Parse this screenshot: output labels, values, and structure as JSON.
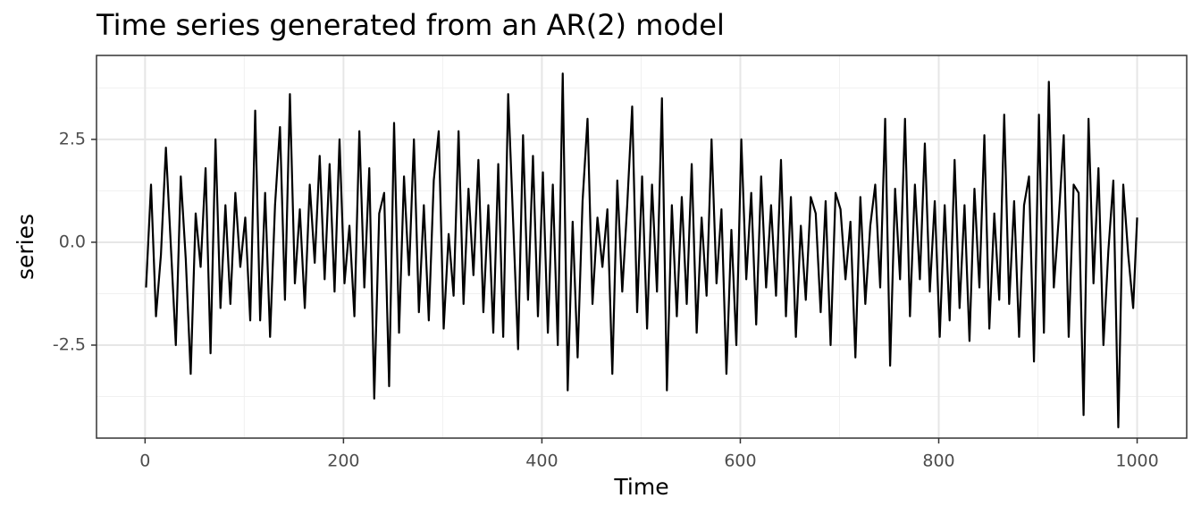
{
  "chart_data": {
    "type": "line",
    "title": "Time series generated from an AR(2) model",
    "x_label": "Time",
    "y_label": "series",
    "color": "#000000",
    "grid": true,
    "xlim": [
      -48.95,
      1049.95
    ],
    "xticks": [
      0,
      200,
      400,
      600,
      800,
      1000
    ],
    "xminor": [
      100,
      300,
      500,
      700,
      900
    ],
    "ylim": [
      -4.76,
      4.54
    ],
    "yticks": [
      -2.5,
      {
        "value": 0,
        "label": "0.0"
      },
      2.5
    ],
    "yminor": [
      -3.75,
      -1.25,
      1.25,
      3.75
    ],
    "x": [
      1,
      6,
      11,
      16,
      21,
      26,
      31,
      36,
      41,
      46,
      51,
      56,
      61,
      66,
      71,
      76,
      81,
      86,
      91,
      96,
      101,
      106,
      111,
      116,
      121,
      126,
      131,
      136,
      141,
      146,
      151,
      156,
      161,
      166,
      171,
      176,
      181,
      186,
      191,
      196,
      201,
      206,
      211,
      216,
      221,
      226,
      231,
      236,
      241,
      246,
      251,
      256,
      261,
      266,
      271,
      276,
      281,
      286,
      291,
      296,
      301,
      306,
      311,
      316,
      321,
      326,
      331,
      336,
      341,
      346,
      351,
      356,
      361,
      366,
      371,
      376,
      381,
      386,
      391,
      396,
      401,
      406,
      411,
      416,
      421,
      426,
      431,
      436,
      441,
      446,
      451,
      456,
      461,
      466,
      471,
      476,
      481,
      486,
      491,
      496,
      501,
      506,
      511,
      516,
      521,
      526,
      531,
      536,
      541,
      546,
      551,
      556,
      561,
      566,
      571,
      576,
      581,
      586,
      591,
      596,
      601,
      606,
      611,
      616,
      621,
      626,
      631,
      636,
      641,
      646,
      651,
      656,
      661,
      666,
      671,
      676,
      681,
      686,
      691,
      696,
      701,
      706,
      711,
      716,
      721,
      726,
      731,
      736,
      741,
      746,
      751,
      756,
      761,
      766,
      771,
      776,
      781,
      786,
      791,
      796,
      801,
      806,
      811,
      816,
      821,
      826,
      831,
      836,
      841,
      846,
      851,
      856,
      861,
      866,
      871,
      876,
      881,
      886,
      891,
      896,
      901,
      906,
      911,
      916,
      921,
      926,
      931,
      936,
      941,
      946,
      951,
      956,
      961,
      966,
      971,
      976,
      981,
      986,
      991,
      996,
      1000
    ],
    "values": [
      -1.1,
      1.4,
      -1.8,
      -0.3,
      2.3,
      -0.1,
      -2.5,
      1.6,
      -0.4,
      -3.2,
      0.7,
      -0.6,
      1.8,
      -2.7,
      2.5,
      -1.6,
      0.9,
      -1.5,
      1.2,
      -0.6,
      0.6,
      -1.9,
      3.2,
      -1.9,
      1.2,
      -2.3,
      0.9,
      2.8,
      -1.4,
      3.6,
      -1.0,
      0.8,
      -1.6,
      1.4,
      -0.5,
      2.1,
      -0.9,
      1.9,
      -1.2,
      2.5,
      -1.0,
      0.4,
      -1.8,
      2.7,
      -1.1,
      1.8,
      -3.8,
      0.7,
      1.2,
      -3.5,
      2.9,
      -2.2,
      1.6,
      -0.8,
      2.5,
      -1.7,
      0.9,
      -1.9,
      1.5,
      2.7,
      -2.1,
      0.2,
      -1.3,
      2.7,
      -1.5,
      1.3,
      -0.8,
      2.0,
      -1.7,
      0.9,
      -2.2,
      1.9,
      -2.3,
      3.6,
      0.5,
      -2.6,
      2.6,
      -1.4,
      2.1,
      -1.8,
      1.7,
      -2.2,
      1.4,
      -2.5,
      4.1,
      -3.6,
      0.5,
      -2.8,
      1.0,
      3.0,
      -1.5,
      0.6,
      -0.6,
      0.8,
      -3.2,
      1.5,
      -1.2,
      0.9,
      3.3,
      -1.7,
      1.6,
      -2.1,
      1.4,
      -1.2,
      3.5,
      -3.6,
      0.9,
      -1.8,
      1.1,
      -1.5,
      1.9,
      -2.2,
      0.6,
      -1.3,
      2.5,
      -1.0,
      0.8,
      -3.2,
      0.3,
      -2.5,
      2.5,
      -0.9,
      1.2,
      -2.0,
      1.6,
      -1.1,
      0.9,
      -1.3,
      2.0,
      -1.8,
      1.1,
      -2.3,
      0.4,
      -1.4,
      1.1,
      0.7,
      -1.7,
      1.0,
      -2.5,
      1.2,
      0.8,
      -0.9,
      0.5,
      -2.8,
      1.1,
      -1.5,
      0.4,
      1.4,
      -1.1,
      3.0,
      -3.0,
      1.3,
      -0.9,
      3.0,
      -1.8,
      1.4,
      -0.9,
      2.4,
      -1.2,
      1.0,
      -2.3,
      0.9,
      -1.9,
      2.0,
      -1.6,
      0.9,
      -2.4,
      1.3,
      -1.1,
      2.6,
      -2.1,
      0.7,
      -1.4,
      3.1,
      -1.5,
      1.0,
      -2.3,
      0.9,
      1.6,
      -2.9,
      3.1,
      -2.2,
      3.9,
      -1.1,
      0.6,
      2.6,
      -2.3,
      1.4,
      1.2,
      -4.2,
      3.0,
      -1.0,
      1.8,
      -2.5,
      -0.2,
      1.5,
      -4.5,
      1.4,
      -0.3,
      -1.6,
      0.6
    ]
  }
}
